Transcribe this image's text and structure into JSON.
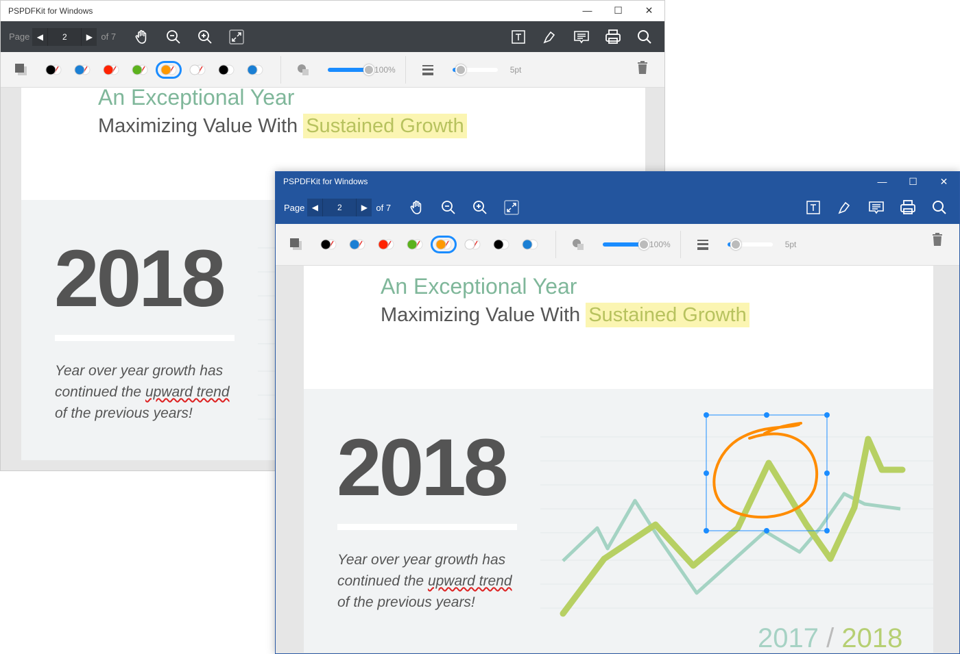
{
  "app": {
    "title": "PSPDFKit for Windows",
    "minimize": "—",
    "maximize": "☐",
    "close": "✕"
  },
  "toolbar": {
    "page_label": "Page",
    "prev": "◀",
    "page": "2",
    "next": "▶",
    "of": "of 7",
    "icons": [
      "hand-icon",
      "zoom-out-icon",
      "zoom-in-icon",
      "fit-icon",
      "text-box-icon",
      "pen-icon",
      "comment-icon",
      "print-icon",
      "search-icon"
    ]
  },
  "annotation_bar": {
    "swatches": [
      {
        "fill": "#000000",
        "stroke": "#e53935"
      },
      {
        "fill": "#1a7fd4",
        "stroke": "#e53935"
      },
      {
        "fill": "#ff2200",
        "stroke": "#e53935"
      },
      {
        "fill": "#5cb21d",
        "stroke": "#e53935"
      },
      {
        "fill": "#ff9900",
        "stroke": "#e53935",
        "selected": true
      },
      {
        "fill": "#ffffff",
        "stroke": "#e53935"
      },
      {
        "fill": "#000000",
        "stroke": "#ffffff"
      },
      {
        "fill": "#1a7fd4",
        "stroke": "#ffffff"
      }
    ],
    "opacity": "100%",
    "opacity_value": 100,
    "thickness": "5pt",
    "thickness_fraction": 0.1
  },
  "document": {
    "title": "An Exceptional Year",
    "subtitle_prefix": "Maximizing Value With ",
    "subtitle_highlight": "Sustained Growth",
    "year": "2018",
    "para1": "Year over year growth has",
    "para2a": "continued the ",
    "para2b": "upward trend",
    "para3": "of the previous years!",
    "label_2017": "2017",
    "label_sep": " / ",
    "label_2018": "2018"
  },
  "colors": {
    "accent": "#23559e",
    "selection": "#1a8cff",
    "ink": "#ff8c00",
    "line_green": "#b6cf5e",
    "line_teal": "#9fd0c0"
  }
}
